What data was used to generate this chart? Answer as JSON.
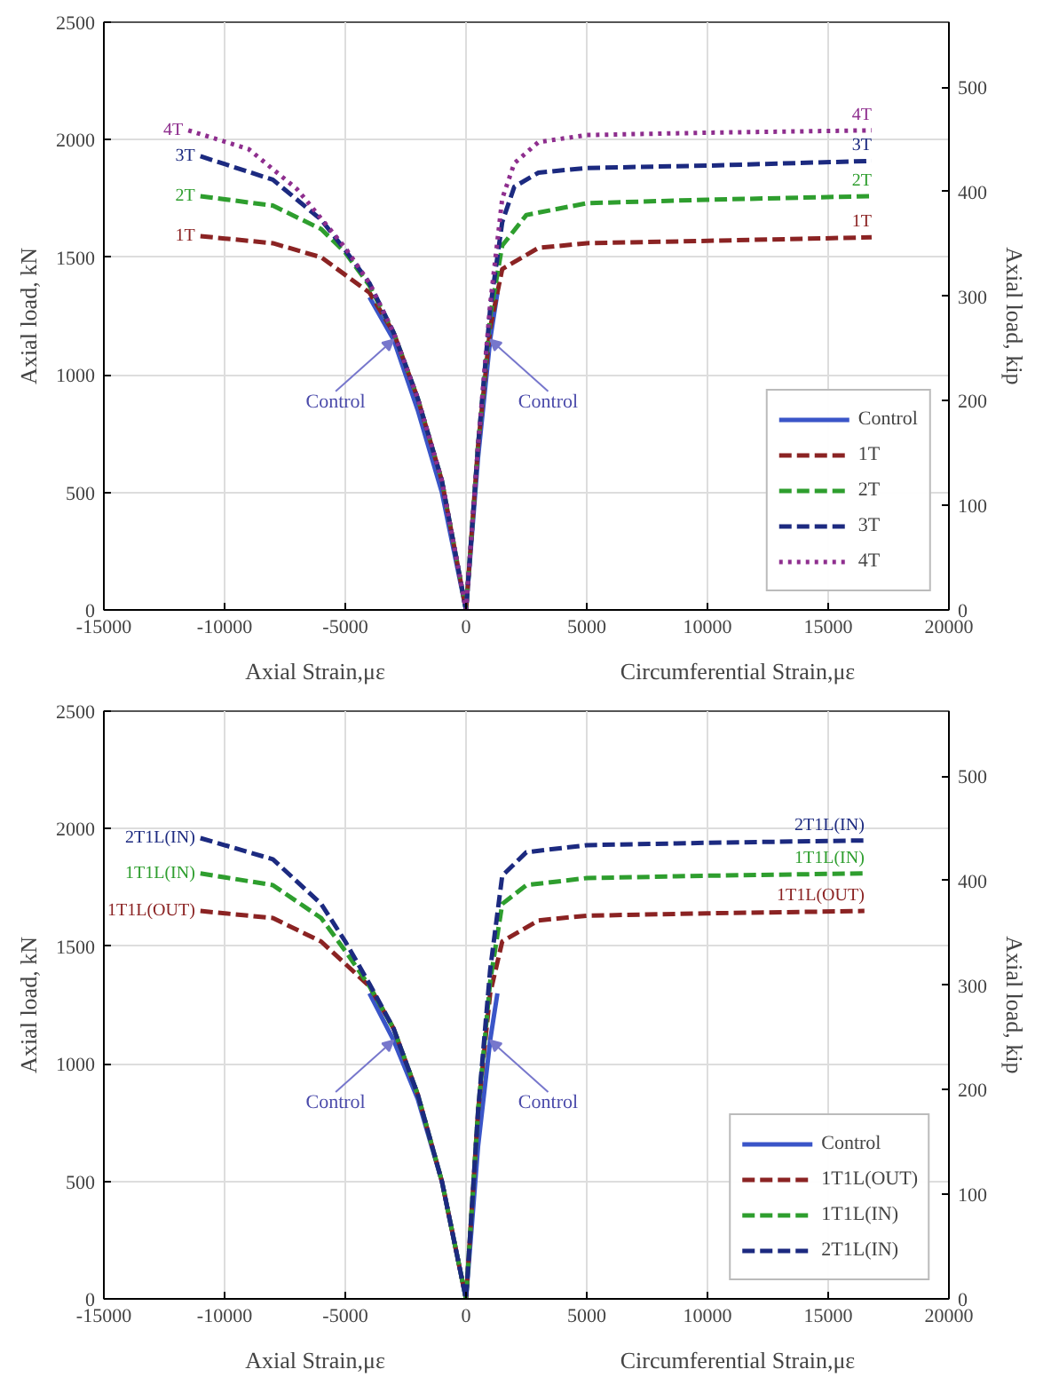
{
  "chart_data": [
    {
      "type": "line",
      "ylabel": "Axial load, kN",
      "y2label": "Axial load, kip",
      "xlim": [
        -15000,
        20000
      ],
      "xticks": [
        -15000,
        -10000,
        -5000,
        0,
        5000,
        10000,
        15000,
        20000
      ],
      "ylim": [
        0,
        2500
      ],
      "yticks": [
        0,
        500,
        1000,
        1500,
        2000,
        2500
      ],
      "y2lim": [
        0,
        562
      ],
      "y2ticks": [
        0,
        100,
        200,
        300,
        400,
        500
      ],
      "grid": true,
      "legend": "bottom right",
      "series": [
        {
          "name": "Control",
          "color": "#3a55c8",
          "line_style": "solid",
          "x": [
            -4000,
            -3000,
            -2000,
            -1000,
            0,
            500,
            1000,
            1300
          ],
          "values": [
            1330,
            1150,
            850,
            500,
            0,
            650,
            1150,
            1350
          ]
        },
        {
          "name": "1T",
          "color": "#8b2323",
          "line_style": "dashed",
          "x": [
            -11000,
            -8000,
            -6000,
            -4000,
            -3000,
            -2000,
            -1000,
            0,
            500,
            1000,
            1500,
            3000,
            5000,
            10000,
            16800
          ],
          "values": [
            1590,
            1560,
            1500,
            1350,
            1180,
            900,
            550,
            0,
            700,
            1200,
            1450,
            1540,
            1560,
            1570,
            1585
          ]
        },
        {
          "name": "2T",
          "color": "#2e9e2e",
          "line_style": "dashed",
          "x": [
            -11000,
            -8000,
            -6000,
            -5000,
            -4000,
            -3000,
            -2000,
            -1000,
            0,
            500,
            1000,
            1500,
            2500,
            5000,
            10000,
            16800
          ],
          "values": [
            1760,
            1720,
            1620,
            1520,
            1380,
            1180,
            900,
            550,
            0,
            700,
            1250,
            1550,
            1680,
            1730,
            1745,
            1760
          ]
        },
        {
          "name": "3T",
          "color": "#1c2a80",
          "line_style": "dashed",
          "x": [
            -11000,
            -8000,
            -6000,
            -5000,
            -4000,
            -3000,
            -2000,
            -1000,
            0,
            500,
            1000,
            1500,
            2000,
            3000,
            5000,
            10000,
            16800
          ],
          "values": [
            1930,
            1830,
            1660,
            1530,
            1390,
            1180,
            900,
            550,
            0,
            700,
            1280,
            1650,
            1800,
            1860,
            1880,
            1890,
            1910
          ]
        },
        {
          "name": "4T",
          "color": "#8e2e8e",
          "line_style": "dotted",
          "x": [
            -11500,
            -9000,
            -7000,
            -5000,
            -4000,
            -3000,
            -2000,
            -1000,
            0,
            500,
            1000,
            1500,
            2000,
            3000,
            5000,
            10000,
            16800
          ],
          "values": [
            2040,
            1960,
            1790,
            1540,
            1390,
            1180,
            900,
            550,
            0,
            700,
            1300,
            1750,
            1900,
            1990,
            2020,
            2030,
            2040
          ]
        }
      ],
      "annotations": [
        "Axial Strain,με",
        "Circumferential Strain,με",
        {
          "text": "Control",
          "x": -3000,
          "y": 1150
        },
        {
          "text": "Control",
          "x": 1000,
          "y": 1150
        },
        {
          "text": "1T",
          "x": -11000,
          "y": 1590
        },
        {
          "text": "2T",
          "x": -11000,
          "y": 1760
        },
        {
          "text": "3T",
          "x": -11000,
          "y": 1930
        },
        {
          "text": "4T",
          "x": -11500,
          "y": 2040
        },
        {
          "text": "1T",
          "x": 16800,
          "y": 1585
        },
        {
          "text": "2T",
          "x": 16800,
          "y": 1760
        },
        {
          "text": "3T",
          "x": 16800,
          "y": 1910
        },
        {
          "text": "4T",
          "x": 16800,
          "y": 2040
        }
      ]
    },
    {
      "type": "line",
      "ylabel": "Axial load, kN",
      "y2label": "Axial load, kip",
      "xlim": [
        -15000,
        20000
      ],
      "xticks": [
        -15000,
        -10000,
        -5000,
        0,
        5000,
        10000,
        15000,
        20000
      ],
      "ylim": [
        0,
        2500
      ],
      "yticks": [
        0,
        500,
        1000,
        1500,
        2000,
        2500
      ],
      "y2lim": [
        0,
        562
      ],
      "y2ticks": [
        0,
        100,
        200,
        300,
        400,
        500
      ],
      "grid": true,
      "legend": "bottom right",
      "series": [
        {
          "name": "Control",
          "color": "#3a55c8",
          "line_style": "solid",
          "x": [
            -4000,
            -3000,
            -2000,
            -1000,
            0,
            500,
            1000,
            1300
          ],
          "values": [
            1300,
            1100,
            850,
            500,
            0,
            650,
            1100,
            1300
          ]
        },
        {
          "name": "1T1L(OUT)",
          "color": "#8b2323",
          "line_style": "dashed",
          "x": [
            -11000,
            -8000,
            -6000,
            -4000,
            -3000,
            -2000,
            -1000,
            0,
            500,
            1000,
            1500,
            3000,
            5000,
            10000,
            16500
          ],
          "values": [
            1650,
            1620,
            1520,
            1330,
            1150,
            870,
            500,
            0,
            800,
            1300,
            1520,
            1610,
            1630,
            1640,
            1650
          ]
        },
        {
          "name": "1T1L(IN)",
          "color": "#2e9e2e",
          "line_style": "dashed",
          "x": [
            -11000,
            -8000,
            -6000,
            -5000,
            -4000,
            -3000,
            -2000,
            -1000,
            0,
            500,
            1000,
            1500,
            2500,
            5000,
            10000,
            16500
          ],
          "values": [
            1810,
            1760,
            1620,
            1480,
            1330,
            1150,
            870,
            500,
            0,
            800,
            1350,
            1680,
            1760,
            1790,
            1800,
            1810
          ]
        },
        {
          "name": "2T1L(IN)",
          "color": "#1c2a80",
          "line_style": "dashed",
          "x": [
            -11000,
            -8000,
            -6000,
            -5000,
            -4000,
            -3000,
            -2000,
            -1000,
            0,
            500,
            1000,
            1500,
            2500,
            5000,
            10000,
            16500
          ],
          "values": [
            1960,
            1870,
            1680,
            1520,
            1340,
            1150,
            870,
            500,
            0,
            800,
            1400,
            1800,
            1900,
            1930,
            1940,
            1950
          ]
        }
      ],
      "annotations": [
        "Axial Strain,με",
        "Circumferential Strain,με",
        {
          "text": "Control",
          "x": -3000,
          "y": 1100
        },
        {
          "text": "Control",
          "x": 1000,
          "y": 1100
        },
        {
          "text": "1T1L(OUT)",
          "x": -11000,
          "y": 1650
        },
        {
          "text": "1T1L(IN)",
          "x": -11000,
          "y": 1810
        },
        {
          "text": "2T1L(IN)",
          "x": -11000,
          "y": 1960
        },
        {
          "text": "1T1L(OUT)",
          "x": 16500,
          "y": 1650
        },
        {
          "text": "1T1L(IN)",
          "x": 16500,
          "y": 1810
        },
        {
          "text": "2T1L(IN)",
          "x": 16500,
          "y": 1950
        }
      ]
    }
  ]
}
